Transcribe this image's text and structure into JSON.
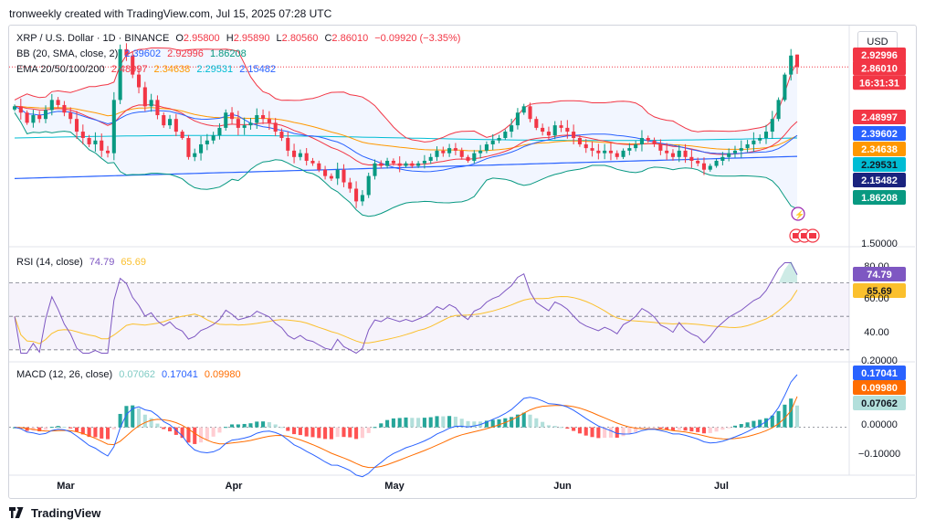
{
  "header": {
    "created_by": "tronweekly created with TradingView.com, Jul 15, 2025 07:28 UTC"
  },
  "currency": "USD",
  "footer": {
    "brand": "TradingView"
  },
  "legend": {
    "symbol": "XRP / U.S. Dollar · 1D · BINANCE",
    "o_label": "O",
    "o": "2.95800",
    "h_label": "H",
    "h": "2.95890",
    "l_label": "L",
    "l": "2.80560",
    "c_label": "C",
    "c": "2.86010",
    "chg": "−0.09920 (−3.35%)",
    "bb_name": "BB (20, SMA, close, 2)",
    "bb_basis": "2.39602",
    "bb_upper": "2.92996",
    "bb_lower": "1.86208",
    "ema_name": "EMA 20/50/100/200",
    "ema20": "2.48997",
    "ema50": "2.34638",
    "ema100": "2.29531",
    "ema200": "2.15482",
    "rsi_name": "RSI (14, close)",
    "rsi": "74.79",
    "rsi_ma": "65.69",
    "macd_name": "MACD (12, 26, close)",
    "macd_hist": "0.07062",
    "macd": "0.17041",
    "macd_signal": "0.09980"
  },
  "price_scale": {
    "top_label": "2.92996",
    "last": "2.86010",
    "countdown": "16:31:31",
    "ema20": "2.48997",
    "bb_basis": "2.39602",
    "ema50": "2.34638",
    "ema100": "2.29531",
    "ema200": "2.15482",
    "bb_lower": "1.86208",
    "tick_150": "1.50000"
  },
  "rsi_scale": {
    "t80": "80.00",
    "rsi": "74.79",
    "ma": "65.69",
    "t60": "60.00",
    "t40": "40.00"
  },
  "macd_scale": {
    "top": "0.20000",
    "macd": "0.17041",
    "signal": "0.09980",
    "hist": "0.07062",
    "zero": "0.00000",
    "neg": "−0.10000"
  },
  "x_axis": [
    "Mar",
    "Apr",
    "May",
    "Jun",
    "Jul"
  ],
  "colors": {
    "up": "#089981",
    "down": "#f23645",
    "bb_upper": "#f23645",
    "bb_basis": "#2962ff",
    "bb_lower": "#089981",
    "ema20": "#f23645",
    "ema50": "#ff9800",
    "ema100": "#00bcd4",
    "ema200": "#2962ff",
    "rsi": "#7e57c2",
    "rsi_ma": "#fbc02d",
    "macd": "#2962ff",
    "signal": "#ff6d00"
  },
  "chart_data": [
    {
      "type": "candlestick",
      "title": "XRP / U.S. Dollar · 1D · BINANCE",
      "x_range": [
        "Feb",
        "Jul 15"
      ],
      "y_range": [
        1.5,
        3.1
      ],
      "close_approx": [
        2.55,
        2.5,
        2.42,
        2.48,
        2.45,
        2.52,
        2.6,
        2.56,
        2.5,
        2.45,
        2.35,
        2.3,
        2.25,
        2.28,
        2.2,
        2.18,
        2.6,
        3.0,
        2.95,
        2.8,
        2.7,
        2.55,
        2.6,
        2.48,
        2.4,
        2.45,
        2.35,
        2.3,
        2.15,
        2.18,
        2.25,
        2.28,
        2.32,
        2.38,
        2.5,
        2.45,
        2.38,
        2.4,
        2.42,
        2.48,
        2.45,
        2.42,
        2.35,
        2.3,
        2.2,
        2.15,
        2.18,
        2.12,
        2.1,
        2.05,
        2.0,
        1.98,
        2.05,
        1.95,
        1.9,
        1.8,
        1.85,
        2.0,
        2.1,
        2.08,
        2.12,
        2.1,
        2.08,
        2.1,
        2.08,
        2.1,
        2.12,
        2.15,
        2.2,
        2.18,
        2.22,
        2.2,
        2.15,
        2.12,
        2.18,
        2.2,
        2.25,
        2.28,
        2.3,
        2.35,
        2.4,
        2.5,
        2.55,
        2.45,
        2.38,
        2.35,
        2.32,
        2.4,
        2.38,
        2.35,
        2.3,
        2.25,
        2.22,
        2.2,
        2.18,
        2.2,
        2.18,
        2.15,
        2.2,
        2.22,
        2.25,
        2.3,
        2.28,
        2.25,
        2.2,
        2.18,
        2.15,
        2.2,
        2.15,
        2.12,
        2.1,
        2.05,
        2.08,
        2.12,
        2.15,
        2.18,
        2.2,
        2.22,
        2.25,
        2.28,
        2.3,
        2.35,
        2.45,
        2.6,
        2.8,
        2.95,
        2.86
      ],
      "last": {
        "open": 2.958,
        "high": 2.9589,
        "low": 2.8056,
        "close": 2.8601
      },
      "bollinger": {
        "period": 20,
        "basis": 2.39602,
        "upper": 2.92996,
        "lower": 1.86208
      },
      "ema": {
        "ema20": 2.48997,
        "ema50": 2.34638,
        "ema100": 2.29531,
        "ema200": 2.15482
      }
    },
    {
      "type": "line",
      "title": "RSI (14, close)",
      "y_range": [
        25,
        85
      ],
      "series": [
        {
          "name": "RSI",
          "last": 74.79
        },
        {
          "name": "RSI MA",
          "last": 65.69
        }
      ],
      "bands": [
        70,
        50,
        30
      ]
    },
    {
      "type": "bar",
      "title": "MACD (12, 26, close)",
      "y_range": [
        -0.14,
        0.2
      ],
      "series": [
        {
          "name": "Histogram",
          "last": 0.07062
        },
        {
          "name": "MACD",
          "last": 0.17041
        },
        {
          "name": "Signal",
          "last": 0.0998
        }
      ]
    }
  ]
}
